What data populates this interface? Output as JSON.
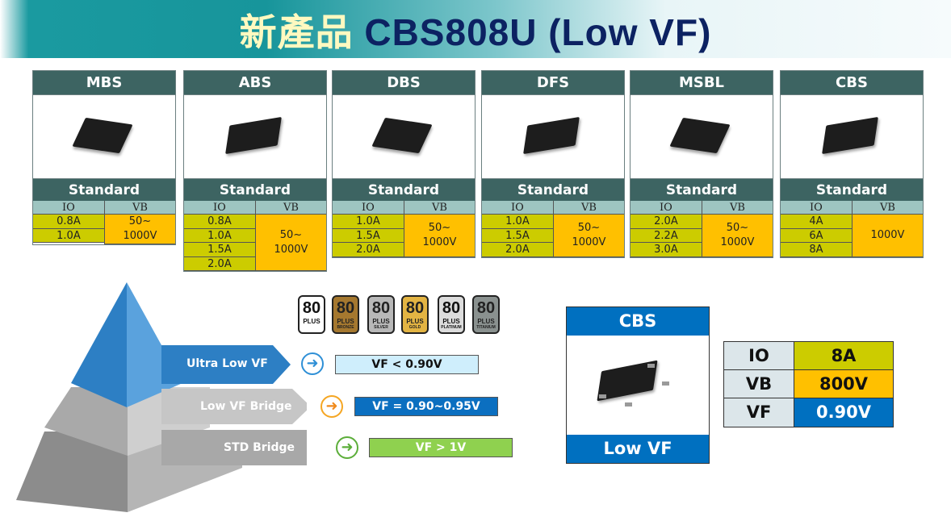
{
  "title": {
    "chinese": "新產品",
    "english": "CBS808U (Low VF)"
  },
  "families": [
    {
      "name": "MBS",
      "grade": "Standard",
      "io_header": "IO",
      "vb_header": "VB",
      "io": [
        "0.8A",
        "1.0A"
      ],
      "vb": "50~\n1000V"
    },
    {
      "name": "ABS",
      "grade": "Standard",
      "io_header": "IO",
      "vb_header": "VB",
      "io": [
        "0.8A",
        "1.0A",
        "1.5A",
        "2.0A"
      ],
      "vb": "50~\n1000V"
    },
    {
      "name": "DBS",
      "grade": "Standard",
      "io_header": "IO",
      "vb_header": "VB",
      "io": [
        "1.0A",
        "1.5A",
        "2.0A"
      ],
      "vb": "50~\n1000V"
    },
    {
      "name": "DFS",
      "grade": "Standard",
      "io_header": "IO",
      "vb_header": "VB",
      "io": [
        "1.0A",
        "1.5A",
        "2.0A"
      ],
      "vb": "50~\n1000V"
    },
    {
      "name": "MSBL",
      "grade": "Standard",
      "io_header": "IO",
      "vb_header": "VB",
      "io": [
        "2.0A",
        "2.2A",
        "3.0A"
      ],
      "vb": "50~\n1000V"
    },
    {
      "name": "CBS",
      "grade": "Standard",
      "io_header": "IO",
      "vb_header": "VB",
      "io": [
        "4A",
        "6A",
        "8A"
      ],
      "vb": "1000V"
    }
  ],
  "badges": [
    {
      "num": "80",
      "plus": "PLUS",
      "tier": "",
      "color": "#ffffff"
    },
    {
      "num": "80",
      "plus": "PLUS",
      "tier": "BRONZE",
      "color": "#a5782f"
    },
    {
      "num": "80",
      "plus": "PLUS",
      "tier": "SILVER",
      "color": "#b8b8b8"
    },
    {
      "num": "80",
      "plus": "PLUS",
      "tier": "GOLD",
      "color": "#e3b443"
    },
    {
      "num": "80",
      "plus": "PLUS",
      "tier": "PLATINUM",
      "color": "#dcdcdc"
    },
    {
      "num": "80",
      "plus": "PLUS",
      "tier": "TITANIUM",
      "color": "#8a918f"
    }
  ],
  "pyramid": {
    "levels": [
      {
        "label": "Ultra Low VF",
        "vf": "VF < 0.90V",
        "arrow_color": "#2e8fd6",
        "box_color": "#cfeefc",
        "text_color": "#111111"
      },
      {
        "label": "Low VF Bridge",
        "vf": "VF = 0.90~0.95V",
        "arrow_color": "#f5a623",
        "box_color": "#0b6fc0",
        "text_color": "#ffffff"
      },
      {
        "label": "STD Bridge",
        "vf": "VF > 1V",
        "arrow_color": "#5cae3a",
        "box_color": "#8fd14f",
        "text_color": "#ffffff"
      }
    ]
  },
  "product": {
    "name": "CBS",
    "tag": "Low VF"
  },
  "specs": [
    {
      "key": "IO",
      "value": "8A",
      "color": "#cccc00",
      "text": "#111111"
    },
    {
      "key": "VB",
      "value": "800V",
      "color": "#ffc000",
      "text": "#111111"
    },
    {
      "key": "VF",
      "value": "0.90V",
      "color": "#0070c0",
      "text": "#ffffff"
    }
  ]
}
